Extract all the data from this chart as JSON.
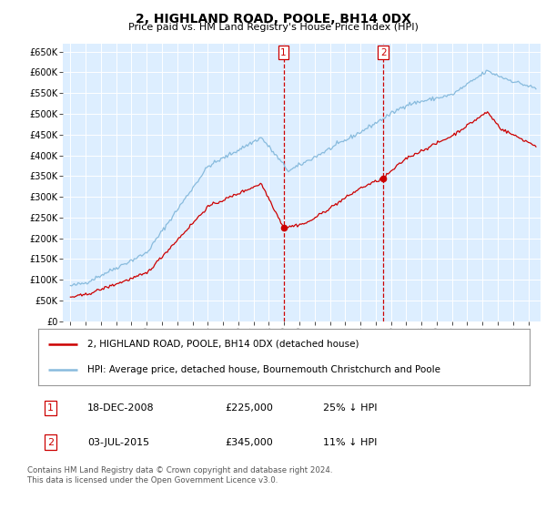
{
  "title": "2, HIGHLAND ROAD, POOLE, BH14 0DX",
  "subtitle": "Price paid vs. HM Land Registry's House Price Index (HPI)",
  "ylim": [
    0,
    670000
  ],
  "yticks": [
    0,
    50000,
    100000,
    150000,
    200000,
    250000,
    300000,
    350000,
    400000,
    450000,
    500000,
    550000,
    600000,
    650000
  ],
  "sale1_date": "18-DEC-2008",
  "sale1_price": 225000,
  "sale1_pct": "25%",
  "sale2_date": "03-JUL-2015",
  "sale2_price": 345000,
  "sale2_pct": "11%",
  "line_color_property": "#cc0000",
  "line_color_hpi": "#88bbdd",
  "background_plot": "#ddeeff",
  "background_fig": "#ffffff",
  "grid_color": "#ffffff",
  "footer": "Contains HM Land Registry data © Crown copyright and database right 2024.\nThis data is licensed under the Open Government Licence v3.0.",
  "legend_label_property": "2, HIGHLAND ROAD, POOLE, BH14 0DX (detached house)",
  "legend_label_hpi": "HPI: Average price, detached house, Bournemouth Christchurch and Poole"
}
